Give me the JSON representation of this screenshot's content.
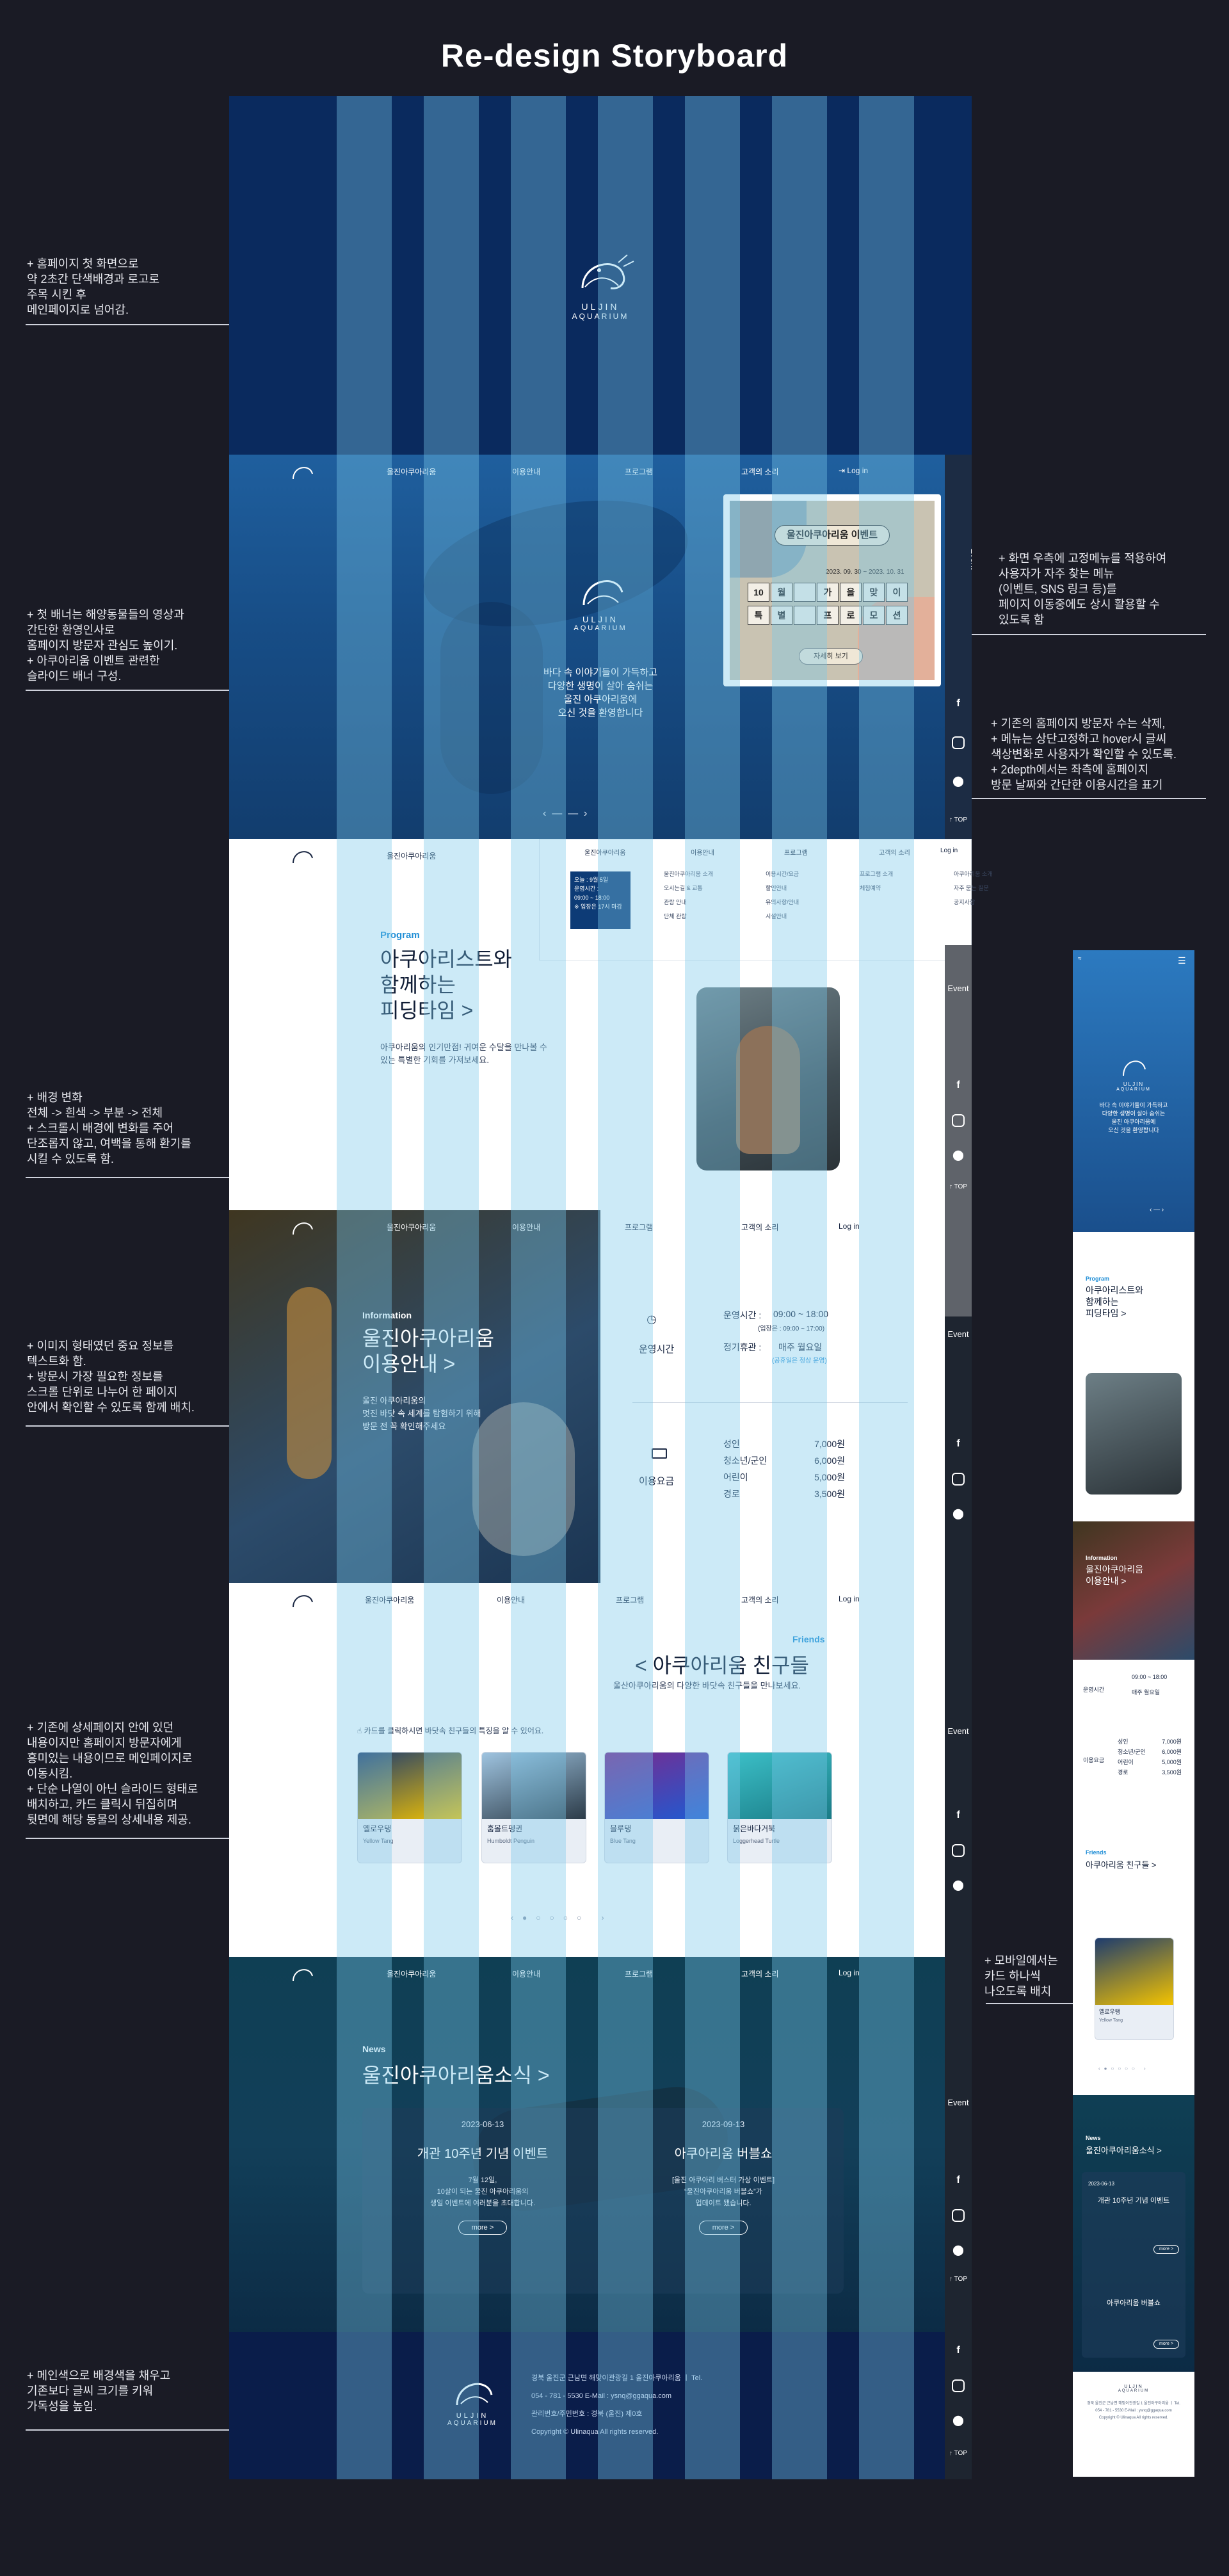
{
  "page_title": "Re-design Storyboard",
  "annotations": [
    "+ 홈페이지 첫 화면으로\n약 2초간 단색배경과 로고로\n주목 시킨 후\n메인페이지로 넘어감.",
    "+ 첫 배너는 해양동물들의 영상과\n간단한 환영인사로\n홈페이지 방문자 관심도 높이기.\n+ 아쿠아리움 이벤트 관련한\n슬라이드 배너 구성.",
    "+ 배경 변화\n전체 -> 흰색 -> 부분 -> 전체\n+ 스크롤시 배경에 변화를 주어\n단조롭지 않고, 여백을 통해 환기를\n시킬 수 있도록 함.",
    "+ 이미지 형태였던 중요 정보를\n텍스트화 함.\n+ 방문시 가장 필요한 정보를\n스크롤 단위로 나누어 한 페이지\n안에서 확인할 수 있도록 함께 배치.",
    "+ 기존에 상세페이지 안에 있던\n내용이지만 홈페이지 방문자에게\n흥미있는 내용이므로 메인페이지로\n이동시킴.\n+ 단순 나열이 아닌 슬라이드 형태로\n배치하고, 카드 클릭시 뒤집히며\n뒷면에 해당 동물의 상세내용 제공.",
    "+ 메인색으로 배경색을 채우고\n기존보다 글씨 크기를 키워\n가독성을 높임."
  ],
  "annotations_right": [
    "+ 화면 우측에 고정메뉴를 적용하여\n사용자가 자주 찾는 메뉴\n(이벤트, SNS 링크 등)를\n페이지 이동중에도 상시 활용할 수\n있도록 함",
    "+ 기존의 홈페이지 방문자 수는 삭제,\n+ 메뉴는 상단고정하고 hover시 글씨\n색상변화로 사용자가 확인할 수 있도록.\n+ 2depth에서는 좌측에 홈페이지\n방문 날짜와 간단한 이용시간을 표기",
    "+ 모바일에서는\n카드 하나씩\n나오도록 배치"
  ],
  "logo": {
    "line1": "ULJIN",
    "line2": "AQUARIUM"
  },
  "nav": {
    "items": [
      "울진아쿠아리움",
      "이용안내",
      "프로그램",
      "고객의 소리"
    ],
    "login": "Log in"
  },
  "sidebar": {
    "event": "Event",
    "top": "TOP"
  },
  "hero": {
    "welcome": "바다 속 이야기들이 가득하고\n다양한 생명이 살아 숨쉬는\n울진 아쿠아리움에\n오신 것을 환영합니다",
    "event_card": {
      "title": "울진아쿠아리움 이벤트",
      "date": "2023. 09. 30 ~ 2023. 10. 31",
      "row1": [
        "10",
        "월",
        "",
        "가",
        "을",
        "맞",
        "이"
      ],
      "row2": [
        "특",
        "별",
        "",
        "프",
        "로",
        "모",
        "션"
      ],
      "more": "자세히 보기"
    }
  },
  "dropdown": {
    "date": "오늘 : 9월 5일",
    "hours_label": "운영시간 :",
    "hours": "09:00 ~ 18:00",
    "note": "※ 입장은 17시 마감",
    "col1": [
      "울진아쿠아리움 소개",
      "오시는길 & 교통",
      "관람 안내",
      "단체 관람"
    ],
    "col2": [
      "이용시간/요금",
      "할인안내",
      "유의사항/안내",
      "시설안내"
    ],
    "col3": [
      "프로그램 소개",
      "체험예약"
    ],
    "col4": [
      "아쿠아리움 소개",
      "자주 묻는 질문",
      "공지사항"
    ]
  },
  "program": {
    "label": "Program",
    "title": "아쿠아리스트와\n함께하는\n피딩타임 >",
    "desc": "아쿠아리움의 인기만점! 귀여운 수달을 만나볼 수\n있는 특별한 기회를 가져보세요."
  },
  "info": {
    "label": "Information",
    "title": "울진아쿠아리움\n이용안내 >",
    "desc": "울진 아쿠아리움의\n멋진 바닷 속 세계를 탐험하기 위해\n방문 전 꼭 확인해주세요",
    "hours_title": "운영시간",
    "open_label": "운영시간 :",
    "open": "09:00 ~ 18:00",
    "open_note": "(입장은 : 09:00 ~ 17:00)",
    "closed_label": "정기휴관 :",
    "closed": "매주 월요일",
    "closed_note": "(공휴일은 정상 운영)",
    "fee_title": "이용요금",
    "fees": [
      [
        "성인",
        "7,000원"
      ],
      [
        "청소년/군인",
        "6,000원"
      ],
      [
        "어린이",
        "5,000원"
      ],
      [
        "경로",
        "3,500원"
      ]
    ]
  },
  "friends": {
    "label": "Friends",
    "title": "< 아쿠아리움 친구들",
    "sub": "울산아쿠아리움의 다양한 바닷속 친구들을 만나보세요.",
    "hint": "카드를 클릭하시면 바닷속 친구들의 특징을 알 수 있어요.",
    "cards": [
      {
        "name": "옐로우탱",
        "en": "Yellow Tang",
        "color": "#f5c400"
      },
      {
        "name": "훔볼트펭귄",
        "en": "Humboldt Penguin",
        "color": "#3a4a5a"
      },
      {
        "name": "블루탱",
        "en": "Blue Tang",
        "color": "#2456c8"
      },
      {
        "name": "붉은바다거북",
        "en": "Loggerhead Turtle",
        "color": "#2aa0a8"
      }
    ]
  },
  "news": {
    "label": "News",
    "title": "울진아쿠아리움소식 >",
    "items": [
      {
        "date": "2023-06-13",
        "title": "개관 10주년 기념 이벤트",
        "body": "7월 12일,\n10살이 되는 울진 아쿠아리움의\n생일 이벤트에 여러분을 초대합니다.",
        "more": "more >"
      },
      {
        "date": "2023-09-13",
        "title": "아쿠아리움 버블쇼",
        "body": "[울진 아쿠아리 버스터 가상 이벤트]\n“울진아쿠아리움 버블쇼”가\n업데이트 됐습니다.",
        "more": "more >"
      }
    ]
  },
  "footer": {
    "addr": "경북 울진군 근남면 해맞이관광길 1 울진아쿠아리움 ㅣ Tel.",
    "contact": "054 - 781 - 5530    E-Mail : ysnq@ggaqua.com",
    "biz": "관리번호/주민번호 :         경북 (울진) 제0호",
    "copy": "Copyright © Ulinaqua All rights reserved."
  },
  "mobile": {
    "program_label": "Program",
    "program_title": "아쿠아리스트와\n함께하는\n피딩타임 >",
    "info_label": "Information",
    "info_title": "울진아쿠아리움\n이용안내 >",
    "friends_label": "Friends",
    "friends_title": "아쿠아리움 친구들 >",
    "card_name": "옐로우탱",
    "card_en": "Yellow Tang",
    "news_label": "News",
    "news_title": "울진아쿠아리움소식 >",
    "news_1": "개관 10주년 기념 이벤트",
    "news_2": "아쿠아리움 버블쇼",
    "more": "more >"
  },
  "colors": {
    "bg": "#1a1b25",
    "navy": "#0b2a5c",
    "accent": "#2a8fd6",
    "stripe": "#78c8eb"
  }
}
